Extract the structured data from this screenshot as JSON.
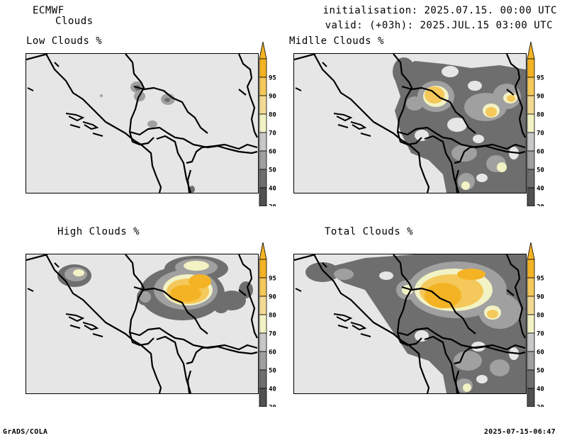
{
  "header": {
    "model": "ECMWF",
    "product": "Clouds",
    "init": "initialisation: 2025.07.15. 00:00 UTC",
    "valid": "valid: (+03h): 2025.JUL.15 03:00 UTC"
  },
  "footer": {
    "left": "GrADS/COLA",
    "right": "2025-07-15-06:47"
  },
  "panels": [
    {
      "title": "Low Clouds %"
    },
    {
      "title": "Midlle Clouds %"
    },
    {
      "title": "High Clouds %"
    },
    {
      "title": "Total Clouds %"
    }
  ],
  "colorbar": {
    "labels": [
      "95",
      "90",
      "80",
      "70",
      "60",
      "50",
      "40",
      "20"
    ],
    "colors": {
      "c95": "#f4b324",
      "c90": "#f4c85a",
      "c80": "#f2da94",
      "c70": "#f2f2c4",
      "c60": "#c8c8c8",
      "c50": "#a0a0a0",
      "c40": "#6e6e6e",
      "c20": "#505050",
      "lowest": "#e6e6e6"
    }
  }
}
